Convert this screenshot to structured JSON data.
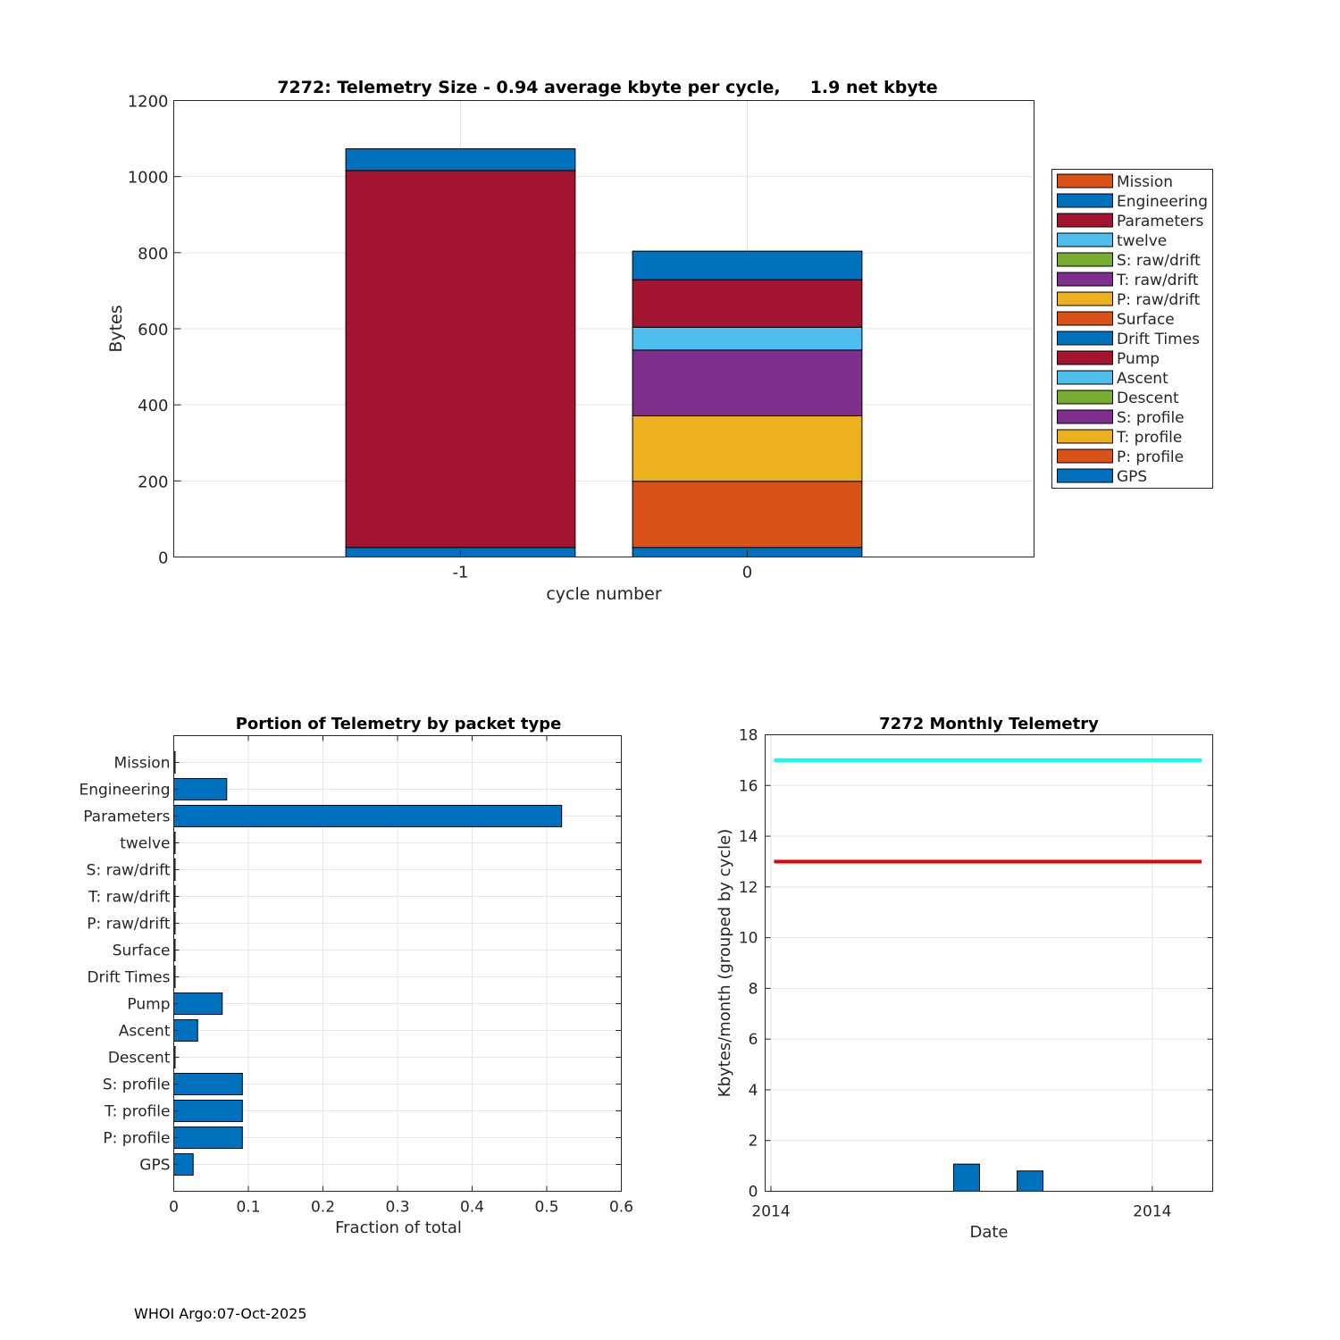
{
  "colors": {
    "Mission": "#D95319",
    "Engineering": "#0072BD",
    "Parameters": "#A2142F",
    "twelve": "#4DBEEE",
    "S: raw/drift": "#77AC30",
    "T: raw/drift": "#7E2F8E",
    "P: raw/drift": "#EDB120",
    "Surface": "#D95319",
    "Drift Times": "#0072BD",
    "Pump": "#A2142F",
    "Ascent": "#4DBEEE",
    "Descent": "#77AC30",
    "S: profile": "#7E2F8E",
    "T: profile": "#EDB120",
    "P: profile": "#D95319",
    "GPS": "#0072BD",
    "bar": "#0072BD",
    "line_cyan": "#00FFFF",
    "line_red": "#E60000"
  },
  "footer": "WHOI Argo:07-Oct-2025",
  "chart_data": [
    {
      "type": "bar",
      "stacked": true,
      "title": "7272: Telemetry Size - 0.94 average kbyte per cycle,     1.9 net kbyte",
      "xlabel": "cycle number",
      "ylabel": "Bytes",
      "ylim": [
        0,
        1200
      ],
      "yticks": [
        0,
        200,
        400,
        600,
        800,
        1000,
        1200
      ],
      "xlim": [
        -2,
        1
      ],
      "grid": true,
      "legend_position": "right",
      "categories": [
        "-1",
        "0"
      ],
      "x": [
        -1,
        0
      ],
      "legend": [
        "Mission",
        "Engineering",
        "Parameters",
        "twelve",
        "S: raw/drift",
        "T: raw/drift",
        "P: raw/drift",
        "Surface",
        "Drift Times",
        "Pump",
        "Ascent",
        "Descent",
        "S: profile",
        "T: profile",
        "P: profile",
        "GPS"
      ],
      "series": [
        {
          "name": "GPS",
          "values": [
            25,
            25
          ]
        },
        {
          "name": "P: profile",
          "values": [
            0,
            174
          ]
        },
        {
          "name": "T: profile",
          "values": [
            0,
            172
          ]
        },
        {
          "name": "S: profile",
          "values": [
            0,
            173
          ]
        },
        {
          "name": "Descent",
          "values": [
            0,
            0
          ]
        },
        {
          "name": "Ascent",
          "values": [
            0,
            60
          ]
        },
        {
          "name": "Pump",
          "values": [
            991,
            125
          ]
        },
        {
          "name": "Drift Times",
          "values": [
            57,
            75
          ]
        }
      ]
    },
    {
      "type": "bar",
      "orientation": "horizontal",
      "title": "Portion of Telemetry by packet type",
      "xlabel": "Fraction of total",
      "ylabel": "",
      "xlim": [
        0,
        0.6
      ],
      "xticks": [
        0,
        0.1,
        0.2,
        0.3,
        0.4,
        0.5,
        0.6
      ],
      "xtick_labels": [
        "0",
        "0.1",
        "0.2",
        "0.3",
        "0.4",
        "0.5",
        "0.6"
      ],
      "grid": true,
      "categories": [
        "Mission",
        "Engineering",
        "Parameters",
        "twelve",
        "S: raw/drift",
        "T: raw/drift",
        "P: raw/drift",
        "Surface",
        "Drift Times",
        "Pump",
        "Ascent",
        "Descent",
        "S: profile",
        "T: profile",
        "P: profile",
        "GPS"
      ],
      "values": [
        0,
        0.071,
        0.52,
        0,
        0,
        0,
        0,
        0,
        0,
        0.065,
        0.032,
        0,
        0.092,
        0.092,
        0.092,
        0.026
      ]
    },
    {
      "type": "bar",
      "title": "7272 Monthly Telemetry",
      "xlabel": "Date",
      "ylabel": "Kbytes/month (grouped by cycle)",
      "ylim": [
        0,
        18
      ],
      "yticks": [
        0,
        2,
        4,
        6,
        8,
        10,
        12,
        14,
        16,
        18
      ],
      "xlim": [
        0,
        1
      ],
      "xticks": [
        0.013,
        0.865
      ],
      "xtick_labels": [
        "2014",
        "2014"
      ],
      "grid": true,
      "bars": [
        {
          "x": 0.45,
          "value": 1.07
        },
        {
          "x": 0.592,
          "value": 0.8
        }
      ],
      "lines": [
        {
          "name": "cyan",
          "y": 17,
          "x": [
            0.02,
            0.975
          ],
          "color": "#00FFFF"
        },
        {
          "name": "red",
          "y": 13,
          "x": [
            0.02,
            0.975
          ],
          "color": "#E60000"
        }
      ]
    }
  ]
}
